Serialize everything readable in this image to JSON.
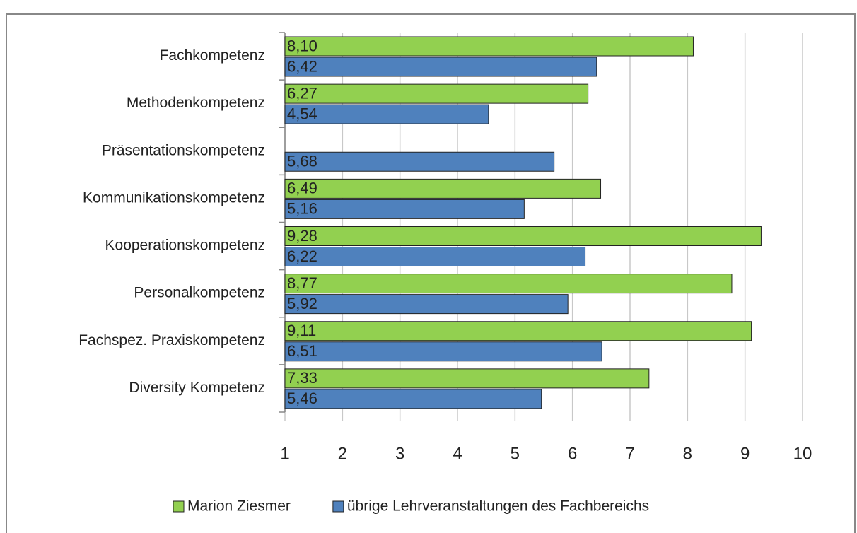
{
  "chart_data": {
    "type": "bar",
    "orientation": "horizontal",
    "categories": [
      "Fachkompetenz",
      "Methodenkompetenz",
      "Präsentationskompetenz",
      "Kommunikationskompetenz",
      "Kooperationskompetenz",
      "Personalkompetenz",
      "Fachspez. Praxiskompetenz",
      "Diversity Kompetenz"
    ],
    "series": [
      {
        "name": "Marion Ziesmer",
        "color": "#92d050",
        "values": [
          8.1,
          6.27,
          null,
          6.49,
          9.28,
          8.77,
          9.11,
          7.33
        ],
        "value_labels": [
          "8,10",
          "6,27",
          null,
          "6,49",
          "9,28",
          "8,77",
          "9,11",
          "7,33"
        ]
      },
      {
        "name": "übrige Lehrveranstaltungen des Fachbereichs",
        "color": "#4f81bd",
        "values": [
          6.42,
          4.54,
          5.68,
          5.16,
          6.22,
          5.92,
          6.51,
          5.46
        ],
        "value_labels": [
          "6,42",
          "4,54",
          "5,68",
          "5,16",
          "6,22",
          "5,92",
          "6,51",
          "5,46"
        ]
      }
    ],
    "xlim": [
      1,
      10
    ],
    "xticks": [
      1,
      2,
      3,
      4,
      5,
      6,
      7,
      8,
      9,
      10
    ],
    "grid": true,
    "legend": "bottom"
  }
}
